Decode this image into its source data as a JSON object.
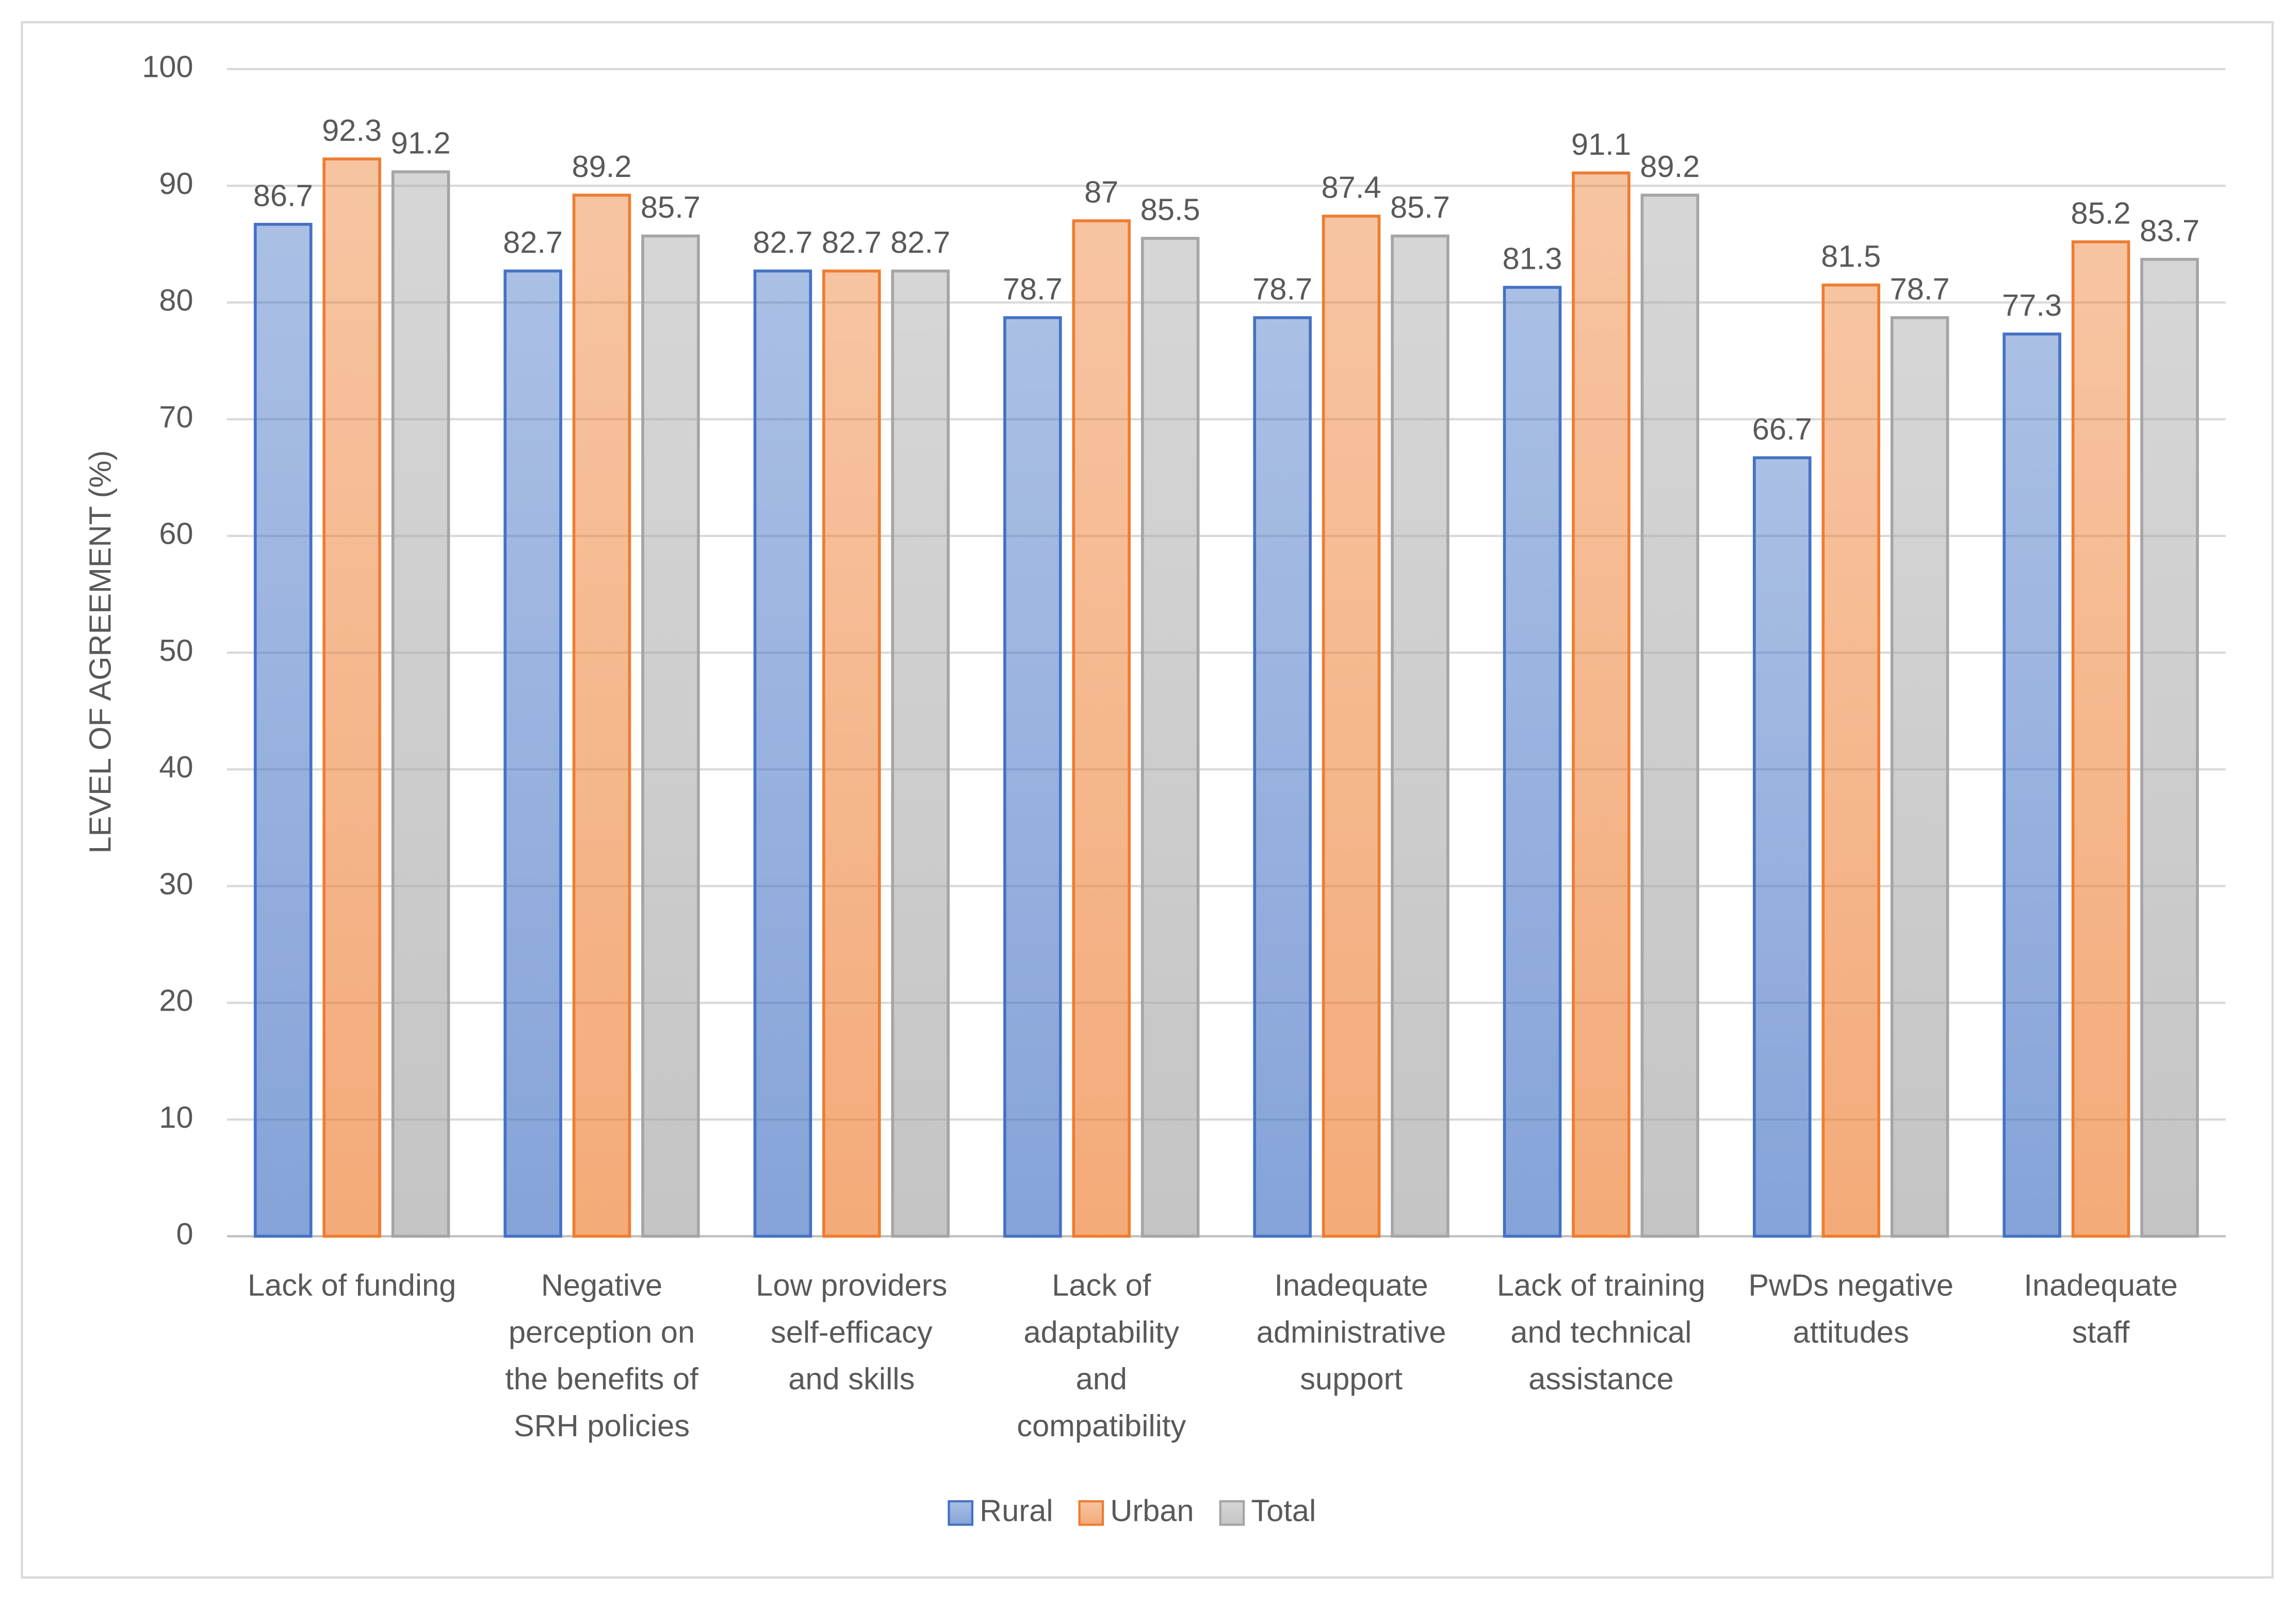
{
  "chart_data": {
    "type": "bar",
    "y_axis_label": "LEVEL OF AGREEMENT (%)",
    "categories": [
      [
        "Lack of funding"
      ],
      [
        "Negative",
        "perception on",
        "the benefits of",
        "SRH policies"
      ],
      [
        "Low providers",
        "self-efficacy",
        "and skills"
      ],
      [
        "Lack of",
        "adaptability",
        "and",
        "compatibility"
      ],
      [
        "Inadequate",
        "administrative",
        "support"
      ],
      [
        "Lack of training",
        "and technical",
        "assistance"
      ],
      [
        "PwDs negative",
        "attitudes"
      ],
      [
        "Inadequate",
        "staff"
      ]
    ],
    "series": [
      {
        "name": "Rural",
        "color": "#4472c4",
        "values": [
          86.7,
          82.7,
          82.7,
          78.7,
          78.7,
          81.3,
          66.7,
          77.3
        ]
      },
      {
        "name": "Urban",
        "color": "#ed7d31",
        "values": [
          92.3,
          89.2,
          82.7,
          87,
          87.4,
          91.1,
          81.5,
          85.2
        ]
      },
      {
        "name": "Total",
        "color": "#a5a5a5",
        "values": [
          91.2,
          85.7,
          82.7,
          85.5,
          85.7,
          89.2,
          78.7,
          83.7
        ]
      }
    ],
    "ylim": [
      0,
      100
    ],
    "yticks": [
      0,
      10,
      20,
      30,
      40,
      50,
      60,
      70,
      80,
      90,
      100
    ],
    "grid": true,
    "legend": "bottom"
  }
}
